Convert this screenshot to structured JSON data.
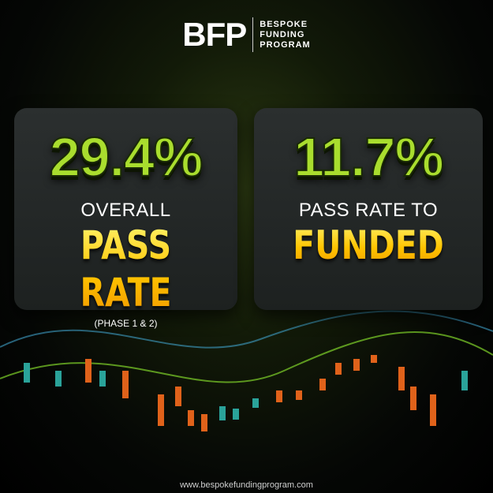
{
  "logo": {
    "mark": "BFP",
    "lines": [
      "BESPOKE",
      "FUNDING",
      "PROGRAM"
    ]
  },
  "cards": [
    {
      "figure": "29.4%",
      "label": "OVERALL",
      "highlight": "PASS RATE",
      "note": "(PHASE 1 & 2)"
    },
    {
      "figure": "11.7%",
      "label": "PASS RATE TO",
      "highlight": "FUNDED"
    }
  ],
  "footer": "www.bespokefundingprogram.com"
}
